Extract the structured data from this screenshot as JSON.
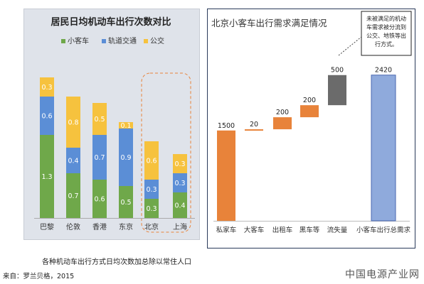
{
  "caption": "各种机动车出行方式日均次数加总除以常住人口",
  "source": "来自：罗兰贝格，2015",
  "watermark": "中国电源产业网",
  "chart_data": [
    {
      "type": "bar",
      "stacked": true,
      "title": "居民日均机动车出行次数对比",
      "categories": [
        "巴黎",
        "伦敦",
        "香港",
        "东京",
        "北京",
        "上海"
      ],
      "series": [
        {
          "name": "小客车",
          "color": "#6fa84a",
          "values": [
            1.3,
            0.7,
            0.6,
            0.5,
            0.3,
            0.4
          ]
        },
        {
          "name": "轨道交通",
          "color": "#5b8ed6",
          "values": [
            0.6,
            0.4,
            0.7,
            0.9,
            0.3,
            0.3
          ]
        },
        {
          "name": "公交",
          "color": "#f6c23e",
          "values": [
            0.3,
            0.8,
            0.5,
            0.1,
            0.6,
            0.3
          ]
        }
      ],
      "ylim": [
        0,
        2.5
      ],
      "highlight": [
        "北京",
        "上海"
      ],
      "legend_position": "top"
    },
    {
      "type": "bar",
      "waterfall": true,
      "title": "北京小客车出行需求满足情况",
      "categories": [
        "私家车",
        "大客车",
        "出租车",
        "黑车等",
        "流失量",
        "小客车出行总需求"
      ],
      "values": [
        1500,
        20,
        200,
        200,
        500,
        2420
      ],
      "colors": [
        "#e8833a",
        "#e8833a",
        "#e8833a",
        "#e8833a",
        "#6b6b6b",
        "#8faadc"
      ],
      "ylim": [
        0,
        2700
      ],
      "annotation": "未被满足的机动车需求被分流到公交、地铁等出行方式。"
    }
  ]
}
